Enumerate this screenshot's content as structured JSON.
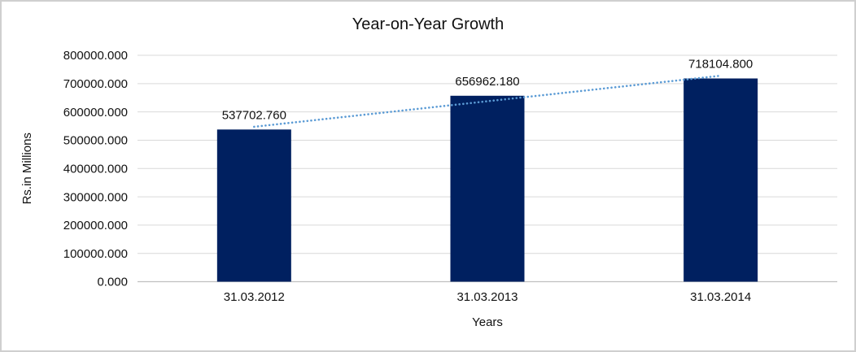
{
  "chart_data": {
    "type": "bar",
    "title": "Year-on-Year Growth",
    "xlabel": "Years",
    "ylabel": "Rs.in Millions",
    "categories": [
      "31.03.2012",
      "31.03.2013",
      "31.03.2014"
    ],
    "values": [
      537702.76,
      656962.18,
      718104.8
    ],
    "value_labels": [
      "537702.760",
      "656962.180",
      "718104.800"
    ],
    "ylim": [
      0,
      800000
    ],
    "ytick_step": 100000,
    "ytick_labels": [
      "0.000",
      "100000.000",
      "200000.000",
      "300000.000",
      "400000.000",
      "500000.000",
      "600000.000",
      "700000.000",
      "800000.000"
    ],
    "grid": true,
    "legend": "none",
    "trendline": {
      "type": "linear",
      "style": "dotted"
    },
    "colors": {
      "bar": "#002060",
      "trendline": "#5B9BD5",
      "gridline": "#D9D9D9",
      "axis_line": "#C0C0C0",
      "text": "#111111",
      "background": "#FFFFFF",
      "border": "#CFCFCF"
    }
  }
}
